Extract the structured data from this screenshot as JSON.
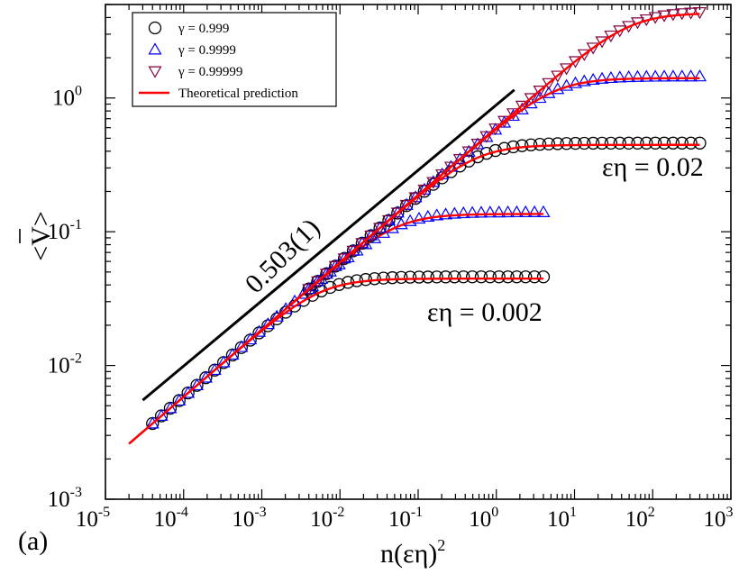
{
  "chart_data": {
    "type": "scatter",
    "panel_label": "(a)",
    "xlabel": {
      "base": "n(εη)",
      "sup": "2"
    },
    "ylabel": "<V>",
    "xscale": "log",
    "yscale": "log",
    "xlim": [
      1e-05,
      1000
    ],
    "ylim": [
      0.001,
      5
    ],
    "x_ticks": [
      {
        "value": 1e-05,
        "base": "10",
        "exp": "-5"
      },
      {
        "value": 0.0001,
        "base": "10",
        "exp": "-4"
      },
      {
        "value": 0.001,
        "base": "10",
        "exp": "-3"
      },
      {
        "value": 0.01,
        "base": "10",
        "exp": "-2"
      },
      {
        "value": 0.1,
        "base": "10",
        "exp": "-1"
      },
      {
        "value": 1,
        "base": "10",
        "exp": "0"
      },
      {
        "value": 10,
        "base": "10",
        "exp": "1"
      },
      {
        "value": 100,
        "base": "10",
        "exp": "2"
      },
      {
        "value": 1000,
        "base": "10",
        "exp": "3"
      }
    ],
    "y_ticks": [
      {
        "value": 0.001,
        "base": "10",
        "exp": "-3"
      },
      {
        "value": 0.01,
        "base": "10",
        "exp": "-2"
      },
      {
        "value": 0.1,
        "base": "10",
        "exp": "-1"
      },
      {
        "value": 1,
        "base": "10",
        "exp": "0"
      }
    ],
    "legend": {
      "position": "top-left",
      "entries": [
        {
          "label": "γ = 0.999",
          "marker": "circle",
          "color": "#000000"
        },
        {
          "label": "γ = 0.9999",
          "marker": "triangle-up",
          "color": "#0000ff"
        },
        {
          "label": "γ = 0.99999",
          "marker": "triangle-down",
          "color": "#800040"
        },
        {
          "label": "Theoretical prediction",
          "marker": "line",
          "color": "#ff0000"
        }
      ]
    },
    "groups": [
      {
        "name": "εη = 0.002",
        "x_start": 4e-05,
        "x_end": 4,
        "sat": [
          0.046,
          0.14
        ],
        "n_points": [
          45,
          45
        ]
      },
      {
        "name": "εη = 0.02",
        "x_start": 0.004,
        "x_end": 400,
        "sat": [
          0.46,
          1.45,
          4.45
        ],
        "n_points": [
          45,
          45,
          45
        ]
      }
    ],
    "power_law_coef": 0.6,
    "power_law_exponent": 0.503,
    "fit_line": {
      "x": [
        3e-05,
        1.7
      ],
      "y": [
        0.0055,
        1.15
      ],
      "color": "#000000"
    },
    "theory_color": "#ff0000",
    "annotations": {
      "slope_label": "0.503(1)",
      "group_small_label": "εη = 0.002",
      "group_large_label": "εη = 0.02"
    }
  }
}
